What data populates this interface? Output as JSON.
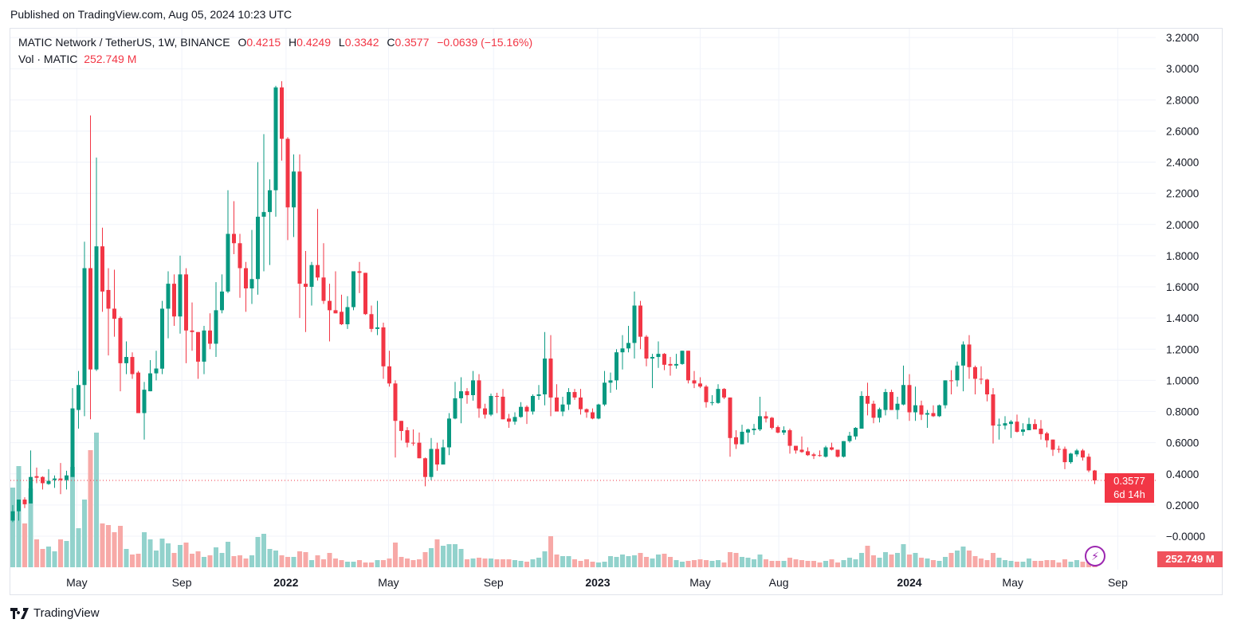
{
  "header": {
    "published": "Published on TradingView.com, Aug 05, 2024 10:23 UTC"
  },
  "legend": {
    "symbol": "MATIC Network / TetherUS, 1W, BINANCE",
    "o_label": "O",
    "o": "0.4215",
    "h_label": "H",
    "h": "0.4249",
    "l_label": "L",
    "l": "0.3342",
    "c_label": "C",
    "c": "0.3577",
    "change": "−0.0639 (−15.16%)",
    "vol_label": "Vol · MATIC",
    "vol": "252.749 M"
  },
  "tags": {
    "last_price": "0.3577",
    "countdown": "6d 14h",
    "last_volume": "252.749 M"
  },
  "footer": {
    "brand": "TradingView"
  },
  "colors": {
    "up": "#089981",
    "down": "#f23645",
    "vol_up": "#92d2cc",
    "vol_down": "#f7a9a7",
    "grid": "#f0f3fa"
  },
  "chart_data": {
    "type": "candlestick",
    "title": "MATIC Network / TetherUS, 1W, BINANCE",
    "interval": "1W",
    "first_week": "2021-02-15",
    "ylim": [
      -0.05,
      3.3
    ],
    "y_ticks": [
      "3.2000",
      "3.0000",
      "2.8000",
      "2.6000",
      "2.4000",
      "2.2000",
      "2.0000",
      "1.8000",
      "1.6000",
      "1.4000",
      "1.2000",
      "1.0000",
      "0.8000",
      "0.6000",
      "0.4000",
      "0.2000",
      "−0.0000"
    ],
    "y_tick_values": [
      3.2,
      3.0,
      2.8,
      2.6,
      2.4,
      2.2,
      2.0,
      1.8,
      1.6,
      1.4,
      1.2,
      1.0,
      0.8,
      0.6,
      0.4,
      0.2,
      0.0
    ],
    "x_ticks": [
      {
        "label": "May",
        "date": "2021-05-01",
        "bold": false
      },
      {
        "label": "Sep",
        "date": "2021-09-01",
        "bold": false
      },
      {
        "label": "2022",
        "date": "2022-01-01",
        "bold": true
      },
      {
        "label": "May",
        "date": "2022-05-01",
        "bold": false
      },
      {
        "label": "Sep",
        "date": "2022-09-01",
        "bold": false
      },
      {
        "label": "2023",
        "date": "2023-01-01",
        "bold": true
      },
      {
        "label": "May",
        "date": "2023-05-01",
        "bold": false
      },
      {
        "label": "Aug",
        "date": "2023-08-01",
        "bold": false
      },
      {
        "label": "2024",
        "date": "2024-01-01",
        "bold": true
      },
      {
        "label": "May",
        "date": "2024-05-01",
        "bold": false
      },
      {
        "label": "Sep",
        "date": "2024-09-01",
        "bold": false
      }
    ],
    "last_price": 0.3577,
    "ohlc_fields": [
      "open",
      "high",
      "low",
      "close"
    ],
    "ohlc": [
      [
        0.1,
        0.2,
        0.09,
        0.16
      ],
      [
        0.16,
        0.235,
        0.1,
        0.235
      ],
      [
        0.235,
        0.25,
        0.18,
        0.205
      ],
      [
        0.21,
        0.55,
        0.21,
        0.38
      ],
      [
        0.385,
        0.44,
        0.34,
        0.375
      ],
      [
        0.38,
        0.385,
        0.3,
        0.34
      ],
      [
        0.335,
        0.43,
        0.33,
        0.355
      ],
      [
        0.36,
        0.39,
        0.31,
        0.37
      ],
      [
        0.37,
        0.47,
        0.27,
        0.36
      ],
      [
        0.36,
        0.42,
        0.3,
        0.39
      ],
      [
        0.38,
        0.95,
        0.38,
        0.82
      ],
      [
        0.81,
        1.06,
        0.69,
        0.97
      ],
      [
        0.97,
        1.89,
        0.77,
        1.72
      ],
      [
        1.72,
        2.7,
        0.75,
        1.07
      ],
      [
        1.07,
        2.43,
        1.06,
        1.86
      ],
      [
        1.86,
        1.98,
        1.44,
        1.57
      ],
      [
        1.58,
        1.72,
        1.16,
        1.46
      ],
      [
        1.46,
        1.71,
        1.28,
        1.395
      ],
      [
        1.4,
        1.41,
        0.93,
        1.11
      ],
      [
        1.11,
        1.25,
        1.04,
        1.15
      ],
      [
        1.15,
        1.18,
        1.01,
        1.04
      ],
      [
        1.05,
        1.06,
        0.79,
        0.79
      ],
      [
        0.79,
        0.99,
        0.62,
        0.94
      ],
      [
        0.93,
        1.13,
        0.93,
        1.045
      ],
      [
        1.045,
        1.19,
        1.0,
        1.076
      ],
      [
        1.075,
        1.51,
        1.04,
        1.46
      ],
      [
        1.46,
        1.7,
        1.27,
        1.62
      ],
      [
        1.62,
        1.68,
        1.35,
        1.41
      ],
      [
        1.41,
        1.8,
        1.3,
        1.68
      ],
      [
        1.68,
        1.72,
        1.11,
        1.32
      ],
      [
        1.32,
        1.5,
        1.19,
        1.31
      ],
      [
        1.31,
        1.31,
        1.01,
        1.12
      ],
      [
        1.12,
        1.35,
        1.04,
        1.32
      ],
      [
        1.32,
        1.43,
        1.2,
        1.235
      ],
      [
        1.235,
        1.63,
        1.15,
        1.45
      ],
      [
        1.45,
        1.68,
        1.43,
        1.57
      ],
      [
        1.57,
        2.22,
        1.56,
        1.94
      ],
      [
        1.94,
        2.15,
        1.81,
        1.88
      ],
      [
        1.88,
        1.94,
        1.53,
        1.72
      ],
      [
        1.72,
        1.76,
        1.44,
        1.59
      ],
      [
        1.59,
        1.965,
        1.49,
        1.65
      ],
      [
        1.65,
        2.4,
        1.55,
        2.05
      ],
      [
        2.05,
        2.58,
        1.7,
        2.08
      ],
      [
        2.08,
        2.29,
        1.74,
        2.22
      ],
      [
        2.22,
        2.89,
        2.05,
        2.88
      ],
      [
        2.88,
        2.92,
        2.41,
        2.55
      ],
      [
        2.55,
        2.56,
        1.9,
        2.11
      ],
      [
        2.11,
        2.45,
        1.92,
        2.34
      ],
      [
        2.34,
        2.45,
        1.4,
        1.62
      ],
      [
        1.62,
        1.83,
        1.31,
        1.6
      ],
      [
        1.6,
        1.76,
        1.48,
        1.74
      ],
      [
        1.74,
        2.1,
        1.64,
        1.66
      ],
      [
        1.66,
        1.88,
        1.49,
        1.51
      ],
      [
        1.51,
        1.62,
        1.25,
        1.45
      ],
      [
        1.45,
        1.7,
        1.43,
        1.43
      ],
      [
        1.44,
        1.55,
        1.355,
        1.36
      ],
      [
        1.36,
        1.54,
        1.33,
        1.47
      ],
      [
        1.47,
        1.7,
        1.45,
        1.7
      ],
      [
        1.7,
        1.76,
        1.56,
        1.69
      ],
      [
        1.69,
        1.69,
        1.42,
        1.425
      ],
      [
        1.425,
        1.48,
        1.31,
        1.33
      ],
      [
        1.33,
        1.51,
        1.29,
        1.34
      ],
      [
        1.34,
        1.37,
        1.01,
        1.09
      ],
      [
        1.09,
        1.19,
        0.96,
        0.98
      ],
      [
        0.98,
        1.0,
        0.505,
        0.74
      ],
      [
        0.74,
        0.74,
        0.615,
        0.675
      ],
      [
        0.68,
        0.7,
        0.57,
        0.6
      ],
      [
        0.6,
        0.685,
        0.58,
        0.595
      ],
      [
        0.6,
        0.665,
        0.5,
        0.5
      ],
      [
        0.5,
        0.505,
        0.32,
        0.38
      ],
      [
        0.38,
        0.63,
        0.36,
        0.56
      ],
      [
        0.56,
        0.6,
        0.42,
        0.46
      ],
      [
        0.46,
        0.62,
        0.46,
        0.57
      ],
      [
        0.57,
        0.79,
        0.52,
        0.755
      ],
      [
        0.755,
        0.99,
        0.75,
        0.885
      ],
      [
        0.885,
        1.02,
        0.725,
        0.93
      ],
      [
        0.93,
        0.95,
        0.85,
        0.905
      ],
      [
        0.905,
        1.06,
        0.87,
        1.0
      ],
      [
        1.0,
        1.04,
        0.76,
        0.82
      ],
      [
        0.82,
        0.85,
        0.755,
        0.78
      ],
      [
        0.78,
        0.915,
        0.77,
        0.9
      ],
      [
        0.9,
        0.92,
        0.79,
        0.895
      ],
      [
        0.895,
        0.945,
        0.75,
        0.75
      ],
      [
        0.755,
        0.785,
        0.695,
        0.735
      ],
      [
        0.735,
        0.795,
        0.715,
        0.765
      ],
      [
        0.765,
        0.86,
        0.76,
        0.83
      ],
      [
        0.83,
        0.84,
        0.72,
        0.8
      ],
      [
        0.8,
        0.91,
        0.78,
        0.9
      ],
      [
        0.9,
        0.97,
        0.875,
        0.91
      ],
      [
        0.91,
        1.31,
        0.84,
        1.14
      ],
      [
        1.14,
        1.29,
        0.77,
        0.89
      ],
      [
        0.89,
        0.975,
        0.8,
        0.8
      ],
      [
        0.8,
        0.895,
        0.77,
        0.845
      ],
      [
        0.845,
        0.95,
        0.81,
        0.925
      ],
      [
        0.925,
        0.945,
        0.875,
        0.89
      ],
      [
        0.89,
        0.945,
        0.78,
        0.815
      ],
      [
        0.815,
        0.82,
        0.76,
        0.795
      ],
      [
        0.795,
        0.82,
        0.75,
        0.755
      ],
      [
        0.755,
        0.85,
        0.75,
        0.845
      ],
      [
        0.845,
        1.06,
        0.835,
        0.985
      ],
      [
        0.985,
        1.05,
        0.92,
        1.0
      ],
      [
        1.0,
        1.2,
        0.94,
        1.18
      ],
      [
        1.18,
        1.29,
        1.07,
        1.205
      ],
      [
        1.205,
        1.35,
        1.18,
        1.24
      ],
      [
        1.24,
        1.57,
        1.14,
        1.48
      ],
      [
        1.48,
        1.51,
        1.2,
        1.28
      ],
      [
        1.28,
        1.29,
        1.09,
        1.14
      ],
      [
        1.14,
        1.17,
        0.95,
        1.15
      ],
      [
        1.15,
        1.25,
        1.08,
        1.17
      ],
      [
        1.17,
        1.175,
        1.065,
        1.1
      ],
      [
        1.105,
        1.15,
        1.03,
        1.095
      ],
      [
        1.095,
        1.17,
        1.075,
        1.105
      ],
      [
        1.105,
        1.19,
        1.1,
        1.19
      ],
      [
        1.19,
        1.19,
        0.98,
        1.0
      ],
      [
        1.0,
        1.06,
        0.95,
        0.98
      ],
      [
        0.98,
        1.02,
        0.95,
        0.96
      ],
      [
        0.96,
        0.97,
        0.825,
        0.86
      ],
      [
        0.86,
        0.905,
        0.84,
        0.86
      ],
      [
        0.855,
        0.975,
        0.85,
        0.945
      ],
      [
        0.945,
        0.95,
        0.88,
        0.89
      ],
      [
        0.89,
        0.89,
        0.51,
        0.63
      ],
      [
        0.635,
        0.68,
        0.56,
        0.59
      ],
      [
        0.59,
        0.715,
        0.59,
        0.67
      ],
      [
        0.665,
        0.69,
        0.6,
        0.685
      ],
      [
        0.68,
        0.72,
        0.65,
        0.69
      ],
      [
        0.685,
        0.895,
        0.675,
        0.77
      ],
      [
        0.77,
        0.8,
        0.73,
        0.755
      ],
      [
        0.76,
        0.765,
        0.685,
        0.695
      ],
      [
        0.7,
        0.71,
        0.66,
        0.665
      ],
      [
        0.665,
        0.705,
        0.65,
        0.68
      ],
      [
        0.68,
        0.69,
        0.53,
        0.58
      ],
      [
        0.58,
        0.58,
        0.53,
        0.55
      ],
      [
        0.555,
        0.64,
        0.535,
        0.54
      ],
      [
        0.545,
        0.57,
        0.515,
        0.52
      ],
      [
        0.525,
        0.535,
        0.495,
        0.515
      ],
      [
        0.52,
        0.55,
        0.51,
        0.515
      ],
      [
        0.51,
        0.58,
        0.505,
        0.57
      ],
      [
        0.57,
        0.6,
        0.55,
        0.555
      ],
      [
        0.555,
        0.555,
        0.505,
        0.51
      ],
      [
        0.51,
        0.61,
        0.505,
        0.61
      ],
      [
        0.61,
        0.67,
        0.6,
        0.645
      ],
      [
        0.64,
        0.7,
        0.62,
        0.695
      ],
      [
        0.69,
        0.93,
        0.69,
        0.9
      ],
      [
        0.9,
        0.985,
        0.775,
        0.85
      ],
      [
        0.85,
        0.87,
        0.725,
        0.76
      ],
      [
        0.76,
        0.825,
        0.73,
        0.815
      ],
      [
        0.81,
        0.945,
        0.775,
        0.925
      ],
      [
        0.925,
        0.94,
        0.81,
        0.81
      ],
      [
        0.81,
        0.895,
        0.75,
        0.85
      ],
      [
        0.845,
        1.095,
        0.84,
        0.97
      ],
      [
        0.97,
        1.04,
        0.74,
        0.795
      ],
      [
        0.795,
        0.96,
        0.74,
        0.84
      ],
      [
        0.84,
        0.87,
        0.745,
        0.78
      ],
      [
        0.78,
        0.81,
        0.695,
        0.79
      ],
      [
        0.79,
        0.84,
        0.765,
        0.77
      ],
      [
        0.77,
        0.845,
        0.765,
        0.84
      ],
      [
        0.84,
        1.0,
        0.82,
        1.0
      ],
      [
        1.0,
        1.065,
        0.91,
        0.995
      ],
      [
        1.0,
        1.12,
        0.96,
        1.095
      ],
      [
        1.095,
        1.25,
        0.93,
        1.23
      ],
      [
        1.23,
        1.29,
        1.01,
        1.085
      ],
      [
        1.085,
        1.095,
        0.91,
        1.01
      ],
      [
        1.01,
        1.09,
        0.975,
        1.005
      ],
      [
        1.005,
        1.01,
        0.865,
        0.91
      ],
      [
        0.91,
        0.95,
        0.595,
        0.71
      ],
      [
        0.71,
        0.755,
        0.62,
        0.715
      ],
      [
        0.71,
        0.77,
        0.685,
        0.725
      ],
      [
        0.72,
        0.745,
        0.63,
        0.735
      ],
      [
        0.735,
        0.78,
        0.665,
        0.67
      ],
      [
        0.67,
        0.725,
        0.645,
        0.685
      ],
      [
        0.68,
        0.76,
        0.68,
        0.72
      ],
      [
        0.72,
        0.75,
        0.685,
        0.685
      ],
      [
        0.69,
        0.745,
        0.62,
        0.655
      ],
      [
        0.66,
        0.67,
        0.57,
        0.615
      ],
      [
        0.62,
        0.62,
        0.515,
        0.555
      ],
      [
        0.56,
        0.58,
        0.535,
        0.555
      ],
      [
        0.56,
        0.575,
        0.43,
        0.475
      ],
      [
        0.475,
        0.535,
        0.465,
        0.53
      ],
      [
        0.525,
        0.56,
        0.51,
        0.55
      ],
      [
        0.55,
        0.56,
        0.485,
        0.505
      ],
      [
        0.51,
        0.53,
        0.41,
        0.4215
      ],
      [
        0.4215,
        0.4249,
        0.3342,
        0.3577
      ]
    ],
    "volume_unit": "M",
    "volume": [
      8000,
      10160,
      4400,
      7920,
      2800,
      1840,
      2080,
      1600,
      2800,
      2640,
      10080,
      3920,
      6800,
      11760,
      13520,
      4400,
      4240,
      3520,
      4160,
      1840,
      1280,
      1360,
      3520,
      2800,
      1680,
      2880,
      2400,
      1440,
      2240,
      2480,
      1360,
      1600,
      1040,
      1200,
      2000,
      1440,
      2560,
      1120,
      1200,
      880,
      1200,
      3040,
      3360,
      1840,
      1680,
      1200,
      1040,
      1040,
      1600,
      1520,
      720,
      1200,
      800,
      1440,
      880,
      720,
      560,
      560,
      720,
      480,
      480,
      720,
      720,
      880,
      2480,
      1040,
      880,
      720,
      800,
      1520,
      1920,
      2800,
      2160,
      2320,
      2320,
      1840,
      800,
      880,
      960,
      880,
      880,
      800,
      800,
      800,
      720,
      640,
      560,
      800,
      960,
      1600,
      3120,
      1280,
      1120,
      1120,
      800,
      640,
      800,
      560,
      480,
      560,
      1120,
      1040,
      1280,
      1120,
      1200,
      1440,
      1040,
      880,
      1280,
      1360,
      1040,
      720,
      560,
      640,
      720,
      800,
      720,
      640,
      720,
      480,
      1520,
      1440,
      1040,
      960,
      800,
      1280,
      800,
      640,
      640,
      640,
      960,
      800,
      720,
      640,
      640,
      480,
      640,
      800,
      480,
      720,
      960,
      800,
      1440,
      2160,
      1200,
      960,
      1520,
      1280,
      1440,
      2320,
      1280,
      1440,
      960,
      880,
      720,
      640,
      1040,
      1440,
      1680,
      2080,
      1680,
      1120,
      880,
      720,
      1440,
      960,
      720,
      640,
      560,
      560,
      880,
      640,
      640,
      720,
      720,
      480,
      800,
      560,
      720,
      560,
      560,
      252.749
    ]
  }
}
